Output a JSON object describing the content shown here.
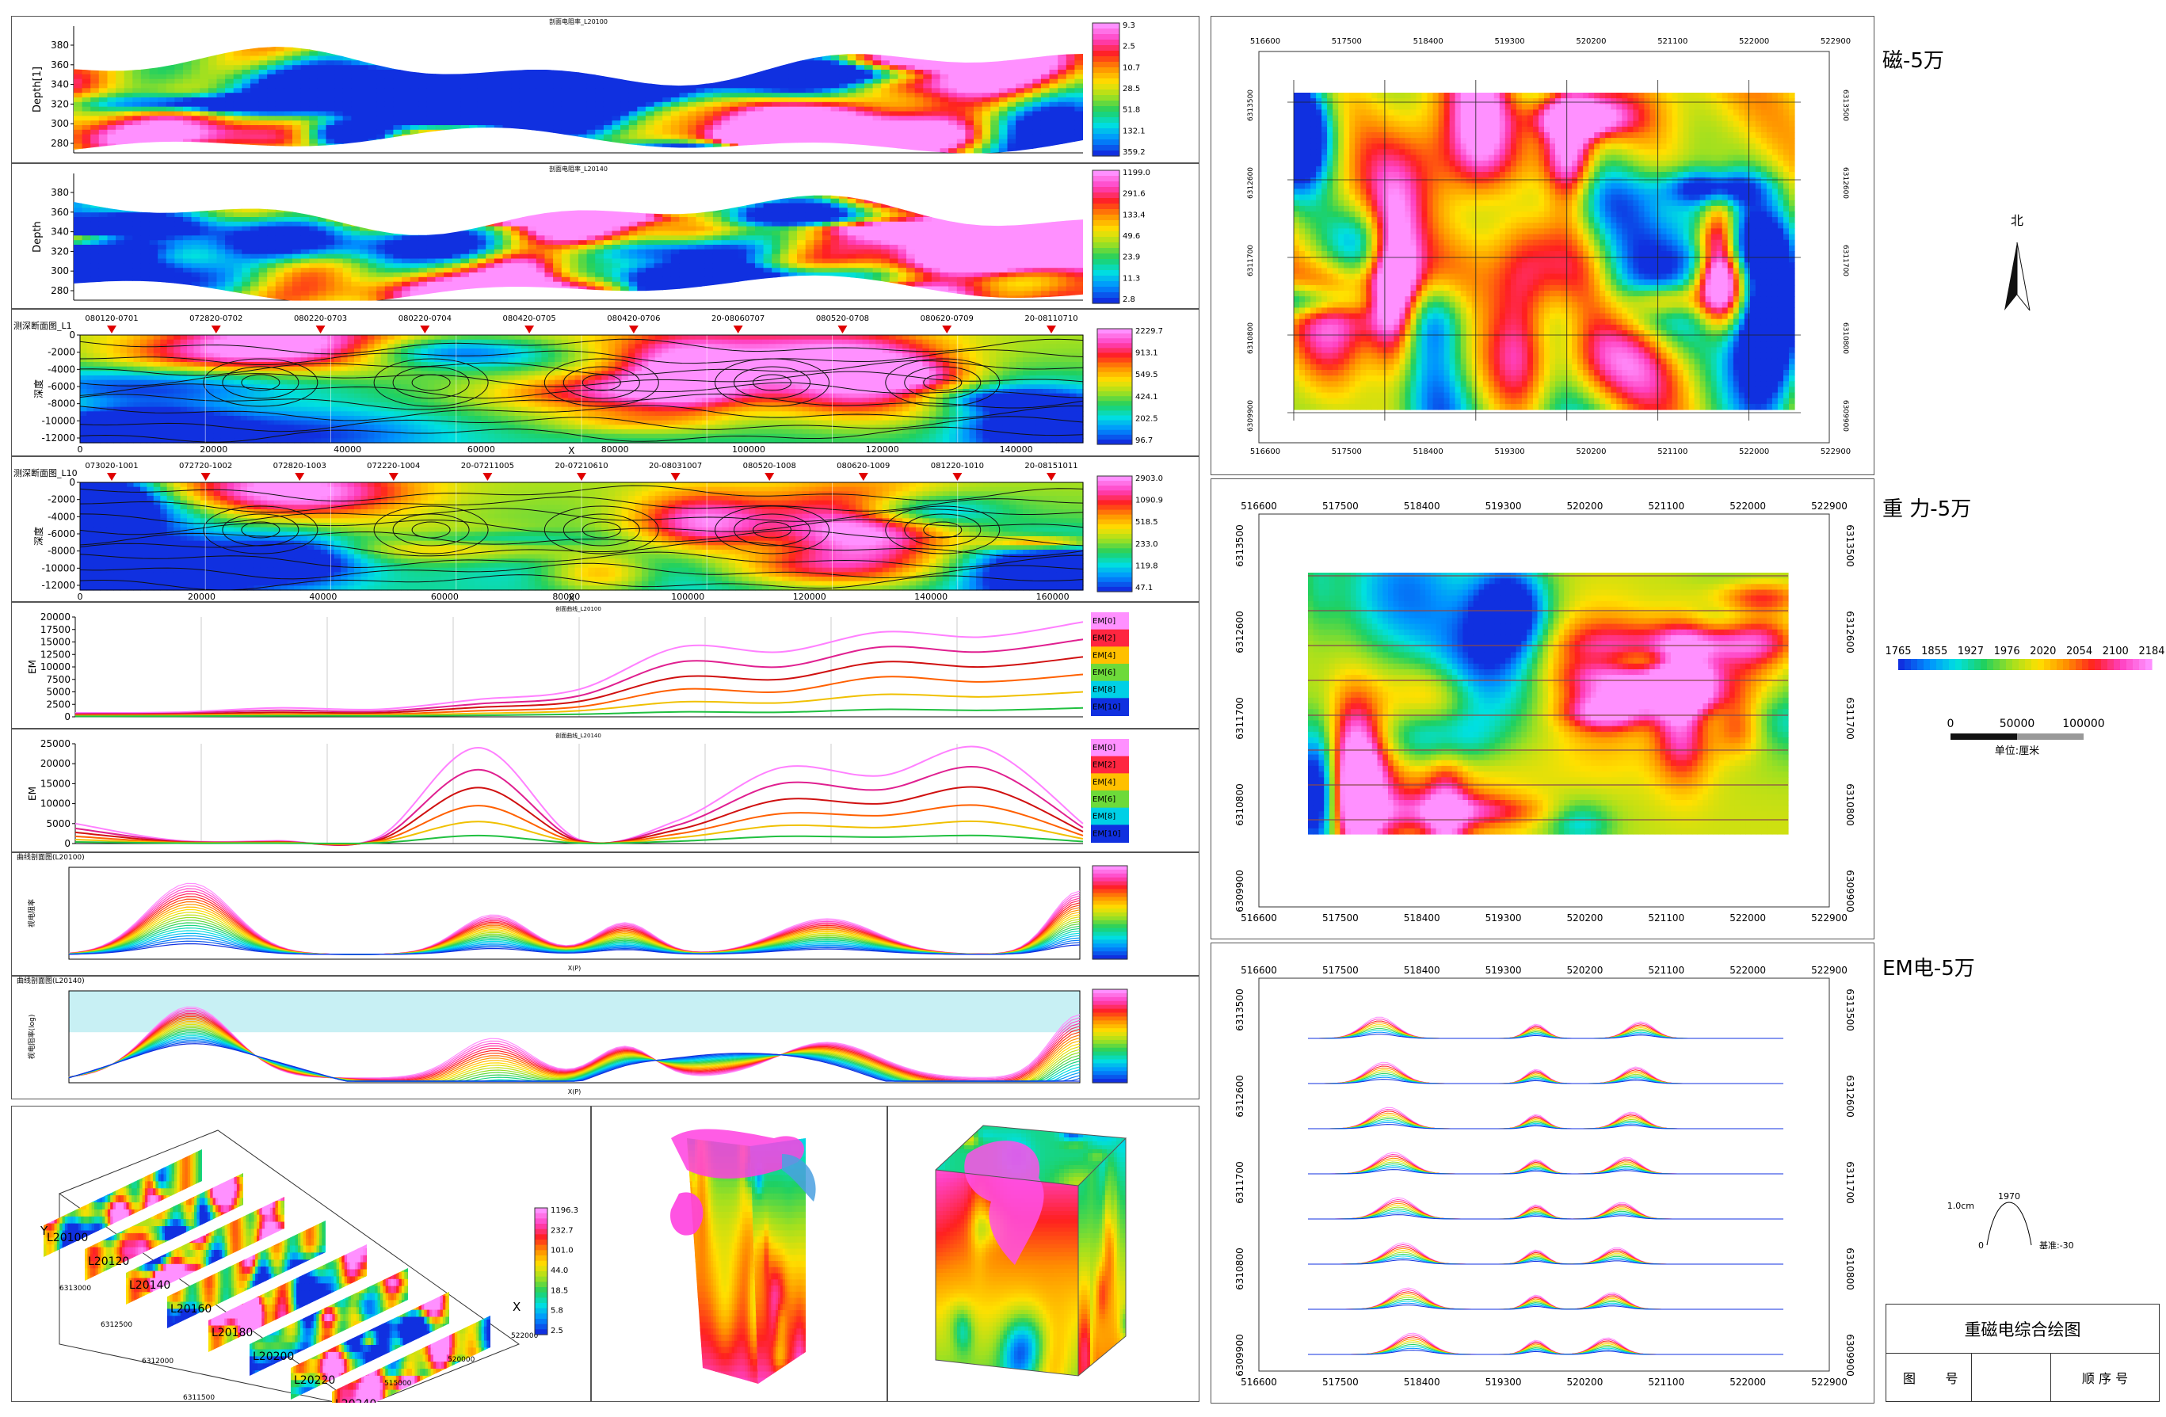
{
  "colors": {
    "rainbow": [
      "#1030e0",
      "#0090ff",
      "#00e0e0",
      "#20d060",
      "#a0e020",
      "#ffe000",
      "#ff9000",
      "#ff2020",
      "#ff40c0",
      "#ff90ff"
    ]
  },
  "left_sections": {
    "depth_profile_1": {
      "title": "剖面电阻率_L20100",
      "ylabel": "Depth[1]",
      "yticks": [
        "380",
        "360",
        "340",
        "320",
        "300",
        "280"
      ],
      "legend": [
        "9.3",
        "2.5",
        "10.7",
        "28.5",
        "51.8",
        "132.1",
        "359.2"
      ]
    },
    "depth_profile_2": {
      "title": "剖面电阻率_L20140",
      "ylabel": "Depth",
      "yticks": [
        "380",
        "360",
        "340",
        "320",
        "300",
        "280"
      ],
      "legend": [
        "1199.0",
        "291.6",
        "133.4",
        "49.6",
        "23.9",
        "11.3",
        "2.8"
      ]
    },
    "section_a": {
      "title": "测深断面图_L1",
      "ylabel": "深度",
      "yticks": [
        "0",
        "-2000",
        "-4000",
        "-6000",
        "-8000",
        "-10000",
        "-12000"
      ],
      "xticks": [
        "0",
        "20000",
        "40000",
        "60000",
        "80000",
        "100000",
        "120000",
        "140000"
      ],
      "xlabel": "X",
      "stations": [
        "080120-0701",
        "072820-0702",
        "080220-0703",
        "080220-0704",
        "080420-0705",
        "080420-0706",
        "20-08060707",
        "080520-0708",
        "080620-0709",
        "20-08110710"
      ],
      "legend": [
        "2229.7",
        "913.1",
        "549.5",
        "424.1",
        "202.5",
        "96.7"
      ]
    },
    "section_b": {
      "title": "测深断面图_L10",
      "ylabel": "深度",
      "yticks": [
        "0",
        "-2000",
        "-4000",
        "-6000",
        "-8000",
        "-10000",
        "-12000"
      ],
      "xticks": [
        "0",
        "20000",
        "40000",
        "60000",
        "80000",
        "100000",
        "120000",
        "140000",
        "160000"
      ],
      "xlabel": "X",
      "stations": [
        "073020-1001",
        "072720-1002",
        "072820-1003",
        "072220-1004",
        "20-07211005",
        "20-07210610",
        "20-08031007",
        "080520-1008",
        "080620-1009",
        "081220-1010",
        "20-08151011"
      ],
      "legend": [
        "2903.0",
        "1090.9",
        "518.5",
        "233.0",
        "119.8",
        "47.1"
      ]
    },
    "em_1": {
      "title": "剖面曲线_L20100",
      "ylabel": "EM",
      "yticks": [
        "20000",
        "17500",
        "15000",
        "12500",
        "10000",
        "7500",
        "5000",
        "2500",
        "0"
      ],
      "legend": [
        "EM[0]",
        "EM[2]",
        "EM[4]",
        "EM[6]",
        "EM[8]",
        "EM[10]"
      ]
    },
    "em_2": {
      "title": "剖面曲线_L20140",
      "ylabel": "EM",
      "yticks": [
        "25000",
        "20000",
        "15000",
        "10000",
        "5000",
        "0"
      ],
      "legend": [
        "EM[0]",
        "EM[2]",
        "EM[4]",
        "EM[6]",
        "EM[8]",
        "EM[10]"
      ]
    },
    "curve_a": {
      "title": "曲线剖面图(L20100)",
      "ylabel": "视电阻率",
      "xlabel": "X(P)"
    },
    "curve_b": {
      "title": "曲线剖面图(L20140)",
      "ylabel": "视电阻率(log)",
      "xlabel": "X(P)"
    }
  },
  "bottom": {
    "stack": {
      "labels": [
        "L20100",
        "L20120",
        "L20140",
        "L20160",
        "L20180",
        "L20200",
        "L20220",
        "L20240"
      ],
      "axis_y": "Y",
      "axis_x": "X",
      "y_ticks": [
        "6313000",
        "6312500",
        "6312000",
        "6311500"
      ],
      "x_ticks": [
        "515000",
        "520000",
        "522000"
      ],
      "legend": [
        "1196.3",
        "232.7",
        "101.0",
        "44.0",
        "18.5",
        "5.8",
        "2.5"
      ]
    }
  },
  "maps": {
    "x_ticks": [
      "516600",
      "517500",
      "518400",
      "519300",
      "520200",
      "521100",
      "522000",
      "522900"
    ],
    "mag": {
      "label": "磁-5万",
      "y_ticks": [
        "6313500",
        "6312600",
        "6311700",
        "6310800",
        "6309900"
      ]
    },
    "grav": {
      "label": "重 力-5万",
      "y_ticks": [
        "6313500",
        "6312600",
        "6311700",
        "6310800",
        "6309900"
      ]
    },
    "em": {
      "label": "EM电-5万",
      "y_ticks": [
        "6313500",
        "6312600",
        "6311700",
        "6310800",
        "6309900"
      ]
    }
  },
  "right_column": {
    "north": "北",
    "grav_legend": [
      "1765",
      "1855",
      "1927",
      "1976",
      "2020",
      "2054",
      "2100",
      "2184"
    ],
    "scale": {
      "ticks": [
        "0",
        "50000",
        "100000"
      ],
      "unit": "单位:厘米"
    },
    "curve_key": {
      "v": "1970",
      "h": "1.0cm",
      "zero": "0",
      "base": "基准:-30"
    }
  },
  "title_block": {
    "title": "重磁电综合绘图",
    "cells": [
      "图",
      "号",
      "顺 序 号"
    ]
  },
  "chart_data": [
    {
      "type": "heatmap",
      "title": "剖面电阻率_L20100",
      "ylabel": "Depth[1]",
      "ylim": [
        270,
        390
      ]
    },
    {
      "type": "heatmap",
      "title": "剖面电阻率_L20140",
      "ylabel": "Depth",
      "ylim": [
        270,
        390
      ]
    },
    {
      "type": "heatmap",
      "title": "测深断面图_L1",
      "ylim": [
        -13000,
        0
      ],
      "xlim": [
        0,
        150000
      ]
    },
    {
      "type": "heatmap",
      "title": "测深断面图_L10",
      "ylim": [
        -13000,
        0
      ],
      "xlim": [
        0,
        165000
      ]
    },
    {
      "type": "line",
      "title": "剖面曲线_L20100",
      "ylabel": "EM",
      "ylim": [
        0,
        20000
      ],
      "x": [
        0,
        10,
        20,
        30,
        40,
        50,
        60,
        70,
        80,
        90,
        100
      ],
      "series": [
        {
          "name": "EM[0]",
          "values": [
            800,
            900,
            1800,
            1500,
            3500,
            5500,
            14000,
            13000,
            17000,
            16000,
            19000
          ]
        },
        {
          "name": "EM[2]",
          "values": [
            600,
            700,
            1300,
            1100,
            2600,
            4200,
            11000,
            10000,
            14000,
            13000,
            15500
          ]
        },
        {
          "name": "EM[4]",
          "values": [
            400,
            500,
            900,
            800,
            1900,
            3100,
            8000,
            7500,
            11000,
            10000,
            12000
          ]
        },
        {
          "name": "EM[6]",
          "values": [
            300,
            350,
            600,
            500,
            1200,
            2000,
            5500,
            5000,
            8000,
            7000,
            8500
          ]
        },
        {
          "name": "EM[8]",
          "values": [
            200,
            250,
            400,
            350,
            700,
            1200,
            3000,
            2800,
            4500,
            4000,
            5000
          ]
        },
        {
          "name": "EM[10]",
          "values": [
            100,
            120,
            200,
            180,
            300,
            500,
            1000,
            900,
            1500,
            1300,
            1800
          ]
        }
      ]
    },
    {
      "type": "line",
      "title": "剖面曲线_L20140",
      "ylabel": "EM",
      "ylim": [
        0,
        25000
      ],
      "x": [
        0,
        10,
        20,
        30,
        40,
        50,
        60,
        70,
        80,
        90,
        100
      ],
      "series": [
        {
          "name": "EM[0]",
          "values": [
            5000,
            800,
            700,
            1500,
            24000,
            1000,
            6000,
            19000,
            17000,
            24000,
            5000
          ]
        },
        {
          "name": "EM[2]",
          "values": [
            3800,
            600,
            500,
            1100,
            18500,
            800,
            4800,
            15000,
            13500,
            19000,
            4000
          ]
        },
        {
          "name": "EM[4]",
          "values": [
            2800,
            450,
            400,
            800,
            14000,
            600,
            3600,
            11000,
            10000,
            14000,
            3000
          ]
        },
        {
          "name": "EM[6]",
          "values": [
            1800,
            300,
            300,
            550,
            9500,
            400,
            2500,
            7500,
            7000,
            9500,
            2000
          ]
        },
        {
          "name": "EM[8]",
          "values": [
            1000,
            200,
            200,
            350,
            5500,
            250,
            1500,
            4500,
            4000,
            5500,
            1200
          ]
        },
        {
          "name": "EM[10]",
          "values": [
            400,
            100,
            100,
            150,
            2000,
            100,
            600,
            1800,
            1600,
            2000,
            500
          ]
        }
      ]
    },
    {
      "type": "heatmap",
      "title": "磁-5万",
      "xlim": [
        516600,
        522900
      ],
      "ylim": [
        6309900,
        6313500
      ]
    },
    {
      "type": "heatmap",
      "title": "重 力-5万",
      "xlim": [
        516600,
        522900
      ],
      "ylim": [
        6309900,
        6313500
      ]
    },
    {
      "type": "line",
      "title": "EM电-5万",
      "xlim": [
        516600,
        522900
      ],
      "ylim": [
        6309900,
        6313500
      ]
    }
  ]
}
